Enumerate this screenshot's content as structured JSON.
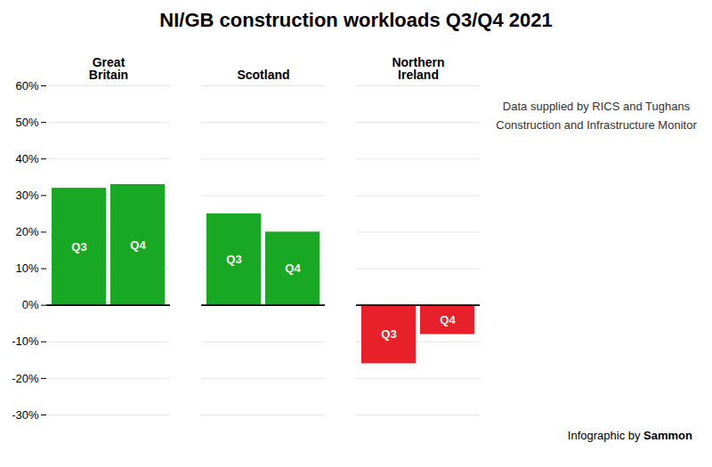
{
  "chart_data": {
    "type": "bar",
    "title": "NI/GB construction workloads Q3/Q4 2021",
    "categories": [
      "Great\nBritain",
      "Scotland",
      "Northern\nIreland"
    ],
    "series": [
      {
        "name": "Q3",
        "values": [
          32,
          25,
          -16
        ],
        "colors": [
          "#19a824",
          "#19a824",
          "#e8202a"
        ]
      },
      {
        "name": "Q4",
        "values": [
          33,
          20,
          -8
        ],
        "colors": [
          "#19a824",
          "#19a824",
          "#e8202a"
        ]
      }
    ],
    "ylim": [
      -30,
      60
    ],
    "yticks": [
      {
        "value": -30,
        "label": "-30%"
      },
      {
        "value": -20,
        "label": "-20%"
      },
      {
        "value": -10,
        "label": "-10%"
      },
      {
        "value": 0,
        "label": "0%"
      },
      {
        "value": 10,
        "label": "10%"
      },
      {
        "value": 20,
        "label": "20%"
      },
      {
        "value": 30,
        "label": "30%"
      },
      {
        "value": 40,
        "label": "40%"
      },
      {
        "value": 50,
        "label": "50%"
      },
      {
        "value": 60,
        "label": "60%"
      }
    ],
    "grid": true,
    "tick_labels": "y",
    "annotation": "Data supplied by RICS and Tughans\nConstruction and Infrastructure Monitor",
    "caption": "Infographic by Sammon"
  }
}
